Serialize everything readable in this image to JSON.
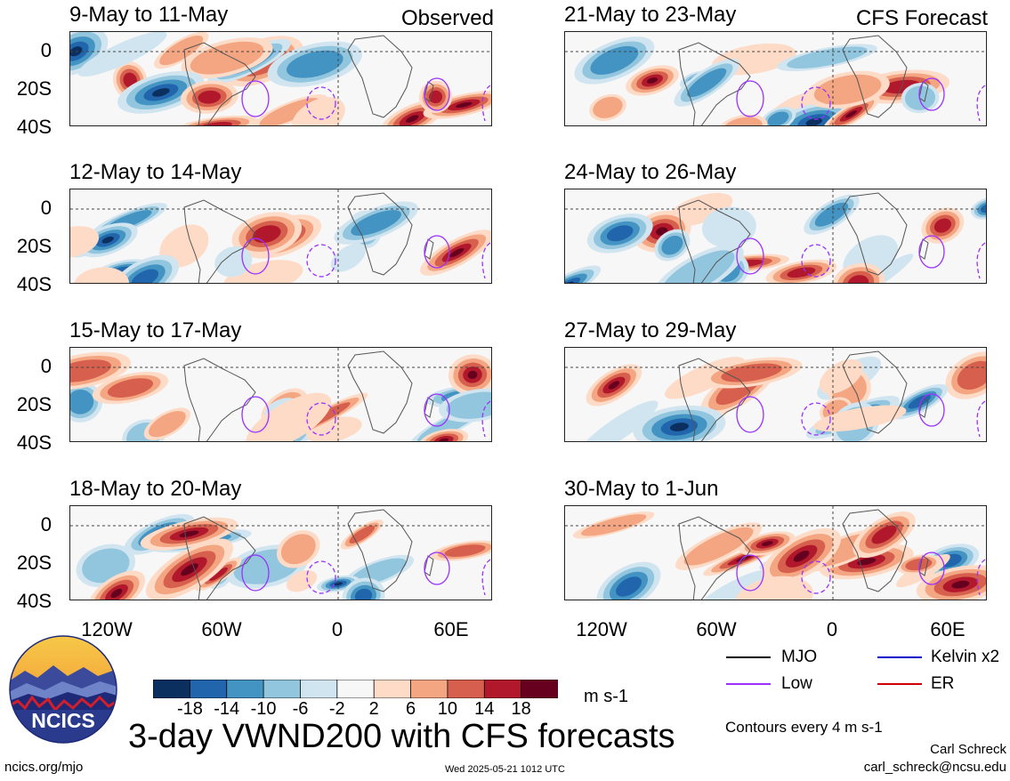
{
  "header": {
    "left_label": "Observed",
    "right_label": "CFS Forecast"
  },
  "panels_left": [
    {
      "title": "9-May to 11-May"
    },
    {
      "title": "12-May to 14-May"
    },
    {
      "title": "15-May to 17-May"
    },
    {
      "title": "18-May to 20-May"
    }
  ],
  "panels_right": [
    {
      "title": "21-May to 23-May"
    },
    {
      "title": "24-May to 26-May"
    },
    {
      "title": "27-May to 29-May"
    },
    {
      "title": "30-May to 1-Jun"
    }
  ],
  "axes": {
    "lat_labels": [
      "0",
      "20S",
      "40S"
    ],
    "lon_labels": [
      "120W",
      "60W",
      "0",
      "60E"
    ]
  },
  "colorbar": {
    "tick_labels": [
      "-18",
      "-14",
      "-10",
      "-6",
      "-2",
      "2",
      "6",
      "10",
      "14",
      "18"
    ],
    "units": "m s-1",
    "colors": [
      "#0b2f5e",
      "#2166ac",
      "#4393c3",
      "#92c5de",
      "#d1e5f0",
      "#f7f7f7",
      "#fddbc7",
      "#f4a582",
      "#d6604d",
      "#b2182b",
      "#67001f"
    ]
  },
  "legend": {
    "items": [
      {
        "label": "MJO",
        "color": "#000000"
      },
      {
        "label": "Kelvin x2",
        "color": "#0000cc"
      },
      {
        "label": "Low",
        "color": "#9b30ff"
      },
      {
        "label": "ER",
        "color": "#cc0000"
      }
    ],
    "contours_note": "Contours every 4 m s-1"
  },
  "footer": {
    "logo_text": "NCICS",
    "main_title": "3-day VWND200 with CFS forecasts",
    "author": "Carl Schreck",
    "email": "carl_schreck@ncsu.edu",
    "url": "ncics.org/mjo",
    "timestamp": "Wed 2025-05-21 1012 UTC"
  }
}
